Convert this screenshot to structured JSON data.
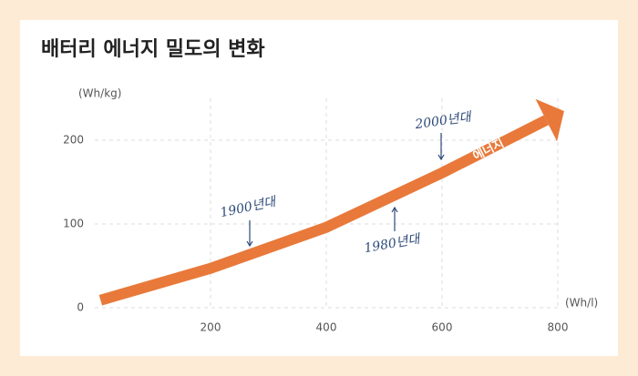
{
  "chart_data": {
    "type": "line",
    "title": "배터리 에너지 밀도의 변화",
    "y_label": "(Wh/kg)",
    "x_label": "(Wh/l)",
    "xlim": [
      0,
      800
    ],
    "xticks": [
      200,
      400,
      600,
      800
    ],
    "ylim": [
      0,
      250
    ],
    "yticks": [
      0,
      100,
      200
    ],
    "grid": true,
    "series": [
      {
        "name": "에너지",
        "color": "#e8793a",
        "x": [
          10,
          200,
          400,
          600,
          780
        ],
        "values": [
          9,
          47,
          96,
          161,
          224
        ]
      }
    ],
    "annotations": [
      "1900년대",
      "1980년대",
      "2000년대"
    ]
  }
}
